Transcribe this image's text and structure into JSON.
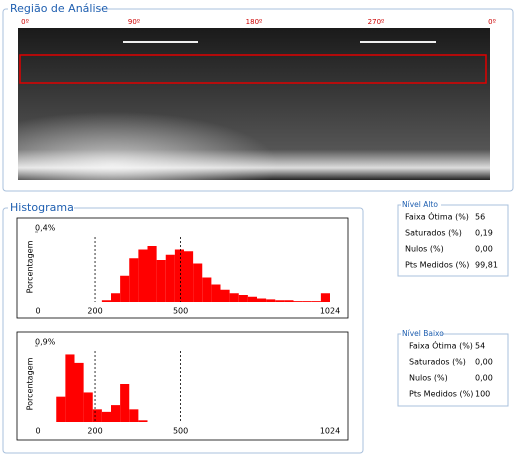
{
  "region_panel": {
    "title": "Região de Análise",
    "angle_labels": [
      "0º",
      "90º",
      "180º",
      "270º",
      "0º"
    ]
  },
  "histogram_panel": {
    "title": "Histograma"
  },
  "chart_data": [
    {
      "type": "histogram",
      "y_label": "Porcentagem",
      "color": "#ff0000",
      "bins": [
        0,
        32,
        64,
        96,
        128,
        160,
        192,
        224,
        256,
        288,
        320,
        352,
        384,
        416,
        448,
        480,
        512,
        544,
        576,
        608,
        640,
        672,
        704,
        736,
        768,
        800,
        832,
        864,
        896,
        928,
        960,
        992,
        1024
      ],
      "values": [
        0,
        0,
        0,
        0,
        0,
        0,
        0,
        0.01,
        0.05,
        0.15,
        0.25,
        0.3,
        0.32,
        0.24,
        0.27,
        0.3,
        0.29,
        0.22,
        0.14,
        0.1,
        0.07,
        0.05,
        0.04,
        0.03,
        0.02,
        0.015,
        0.01,
        0.01,
        0.005,
        0.005,
        0.005,
        0.05
      ],
      "xlim": [
        0,
        1024
      ],
      "xticks": [
        0,
        200,
        500,
        1024
      ],
      "ylim": [
        0,
        0.4
      ],
      "yticks": [
        {
          "value": 0.4,
          "label": "0,4%"
        }
      ]
    },
    {
      "type": "histogram",
      "y_label": "Porcentagem",
      "color": "#ff0000",
      "bins": [
        0,
        32,
        64,
        96,
        128,
        160,
        192,
        224,
        256,
        288,
        320,
        352,
        384,
        416,
        448,
        480,
        512,
        544,
        576,
        608,
        640,
        672,
        704,
        736,
        768,
        800,
        832,
        864,
        896,
        928,
        960,
        992,
        1024
      ],
      "values": [
        0,
        0,
        0.3,
        0.8,
        0.7,
        0.35,
        0.15,
        0.12,
        0.2,
        0.45,
        0.15,
        0.02,
        0,
        0,
        0,
        0,
        0,
        0,
        0,
        0,
        0,
        0,
        0,
        0,
        0,
        0,
        0,
        0,
        0,
        0,
        0,
        0
      ],
      "xlim": [
        0,
        1024
      ],
      "xticks": [
        0,
        200,
        500,
        1024
      ],
      "ylim": [
        0,
        0.9
      ],
      "yticks": [
        {
          "value": 0.9,
          "label": "0,9%"
        }
      ]
    }
  ],
  "stats": [
    {
      "title": "Nível Alto",
      "rows": [
        [
          "Faixa Ótima (%)",
          "56"
        ],
        [
          "Saturados (%)",
          "0,19"
        ],
        [
          "Nulos (%)",
          "0,00"
        ],
        [
          "Pts Medidos (%)",
          "99,81"
        ]
      ]
    },
    {
      "title": "Nível Baixo",
      "rows": [
        [
          "Faixa Ótima (%)",
          "54"
        ],
        [
          "Saturados (%)",
          "0,00"
        ],
        [
          "Nulos (%)",
          "0,00"
        ],
        [
          "Pts Medidos (%)",
          "100"
        ]
      ]
    }
  ]
}
